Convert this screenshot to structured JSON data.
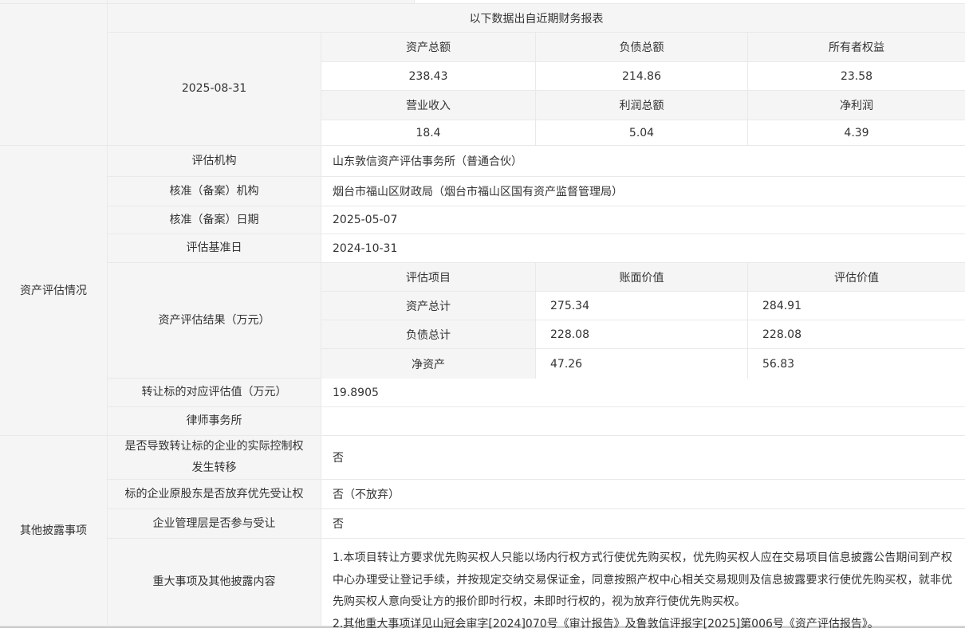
{
  "colors": {
    "cell_background": "#f5f5f5",
    "border": "#e9e9e9",
    "outer_bottom_border": "#cbcbcb",
    "text": "#333333"
  },
  "financial": {
    "note": "以下数据出自近期财务报表",
    "date": "2025-08-31",
    "row1_labels": [
      "资产总额",
      "负债总额",
      "所有者权益"
    ],
    "row1_values": [
      "238.43",
      "214.86",
      "23.58"
    ],
    "row2_labels": [
      "营业收入",
      "利润总额",
      "净利润"
    ],
    "row2_values": [
      "18.4",
      "5.04",
      "4.39"
    ]
  },
  "evaluation": {
    "section_label": "资产评估情况",
    "rows": [
      {
        "label": "评估机构",
        "value": "山东敦信资产评估事务所（普通合伙）"
      },
      {
        "label": "核准（备案）机构",
        "value": "烟台市福山区财政局（烟台市福山区国有资产监督管理局）"
      },
      {
        "label": "核准（备案）日期",
        "value": "2025-05-07"
      },
      {
        "label": "评估基准日",
        "value": "2024-10-31"
      }
    ],
    "result_label": "资产评估结果（万元）",
    "result_table": {
      "headers": [
        "评估项目",
        "账面价值",
        "评估价值"
      ],
      "rows": [
        {
          "item": "资产总计",
          "book": "275.34",
          "assessed": "284.91"
        },
        {
          "item": "负债总计",
          "book": "228.08",
          "assessed": "228.08"
        },
        {
          "item": "净资产",
          "book": "47.26",
          "assessed": "56.83"
        }
      ]
    },
    "transfer_value_label": "转让标的对应评估值（万元）",
    "transfer_value": "19.8905",
    "law_firm_label": "律师事务所",
    "law_firm_value": ""
  },
  "disclosure": {
    "section_label": "其他披露事项",
    "rows": [
      {
        "label": "是否导致转让标的企业的实际控制权发生转移",
        "value": "否"
      },
      {
        "label": "标的企业原股东是否放弃优先受让权",
        "value": "否（不放弃）"
      },
      {
        "label": "企业管理层是否参与受让",
        "value": "否"
      }
    ],
    "major_label": "重大事项及其他披露内容",
    "major_items": [
      "1.本项目转让方要求优先购买权人只能以场内行权方式行使优先购买权，优先购买权人应在交易项目信息披露公告期间到产权中心办理受让登记手续，并按规定交纳交易保证金，同意按照产权中心相关交易规则及信息披露要求行使优先购买权，就非优先购买权人意向受让方的报价即时行权，未即时行权的，视为放弃行使优先购买权。",
      "2.其他重大事项详见山冠会审字[2024]070号《审计报告》及鲁敦信评报字[2025]第006号《资产评估报告》。"
    ]
  }
}
